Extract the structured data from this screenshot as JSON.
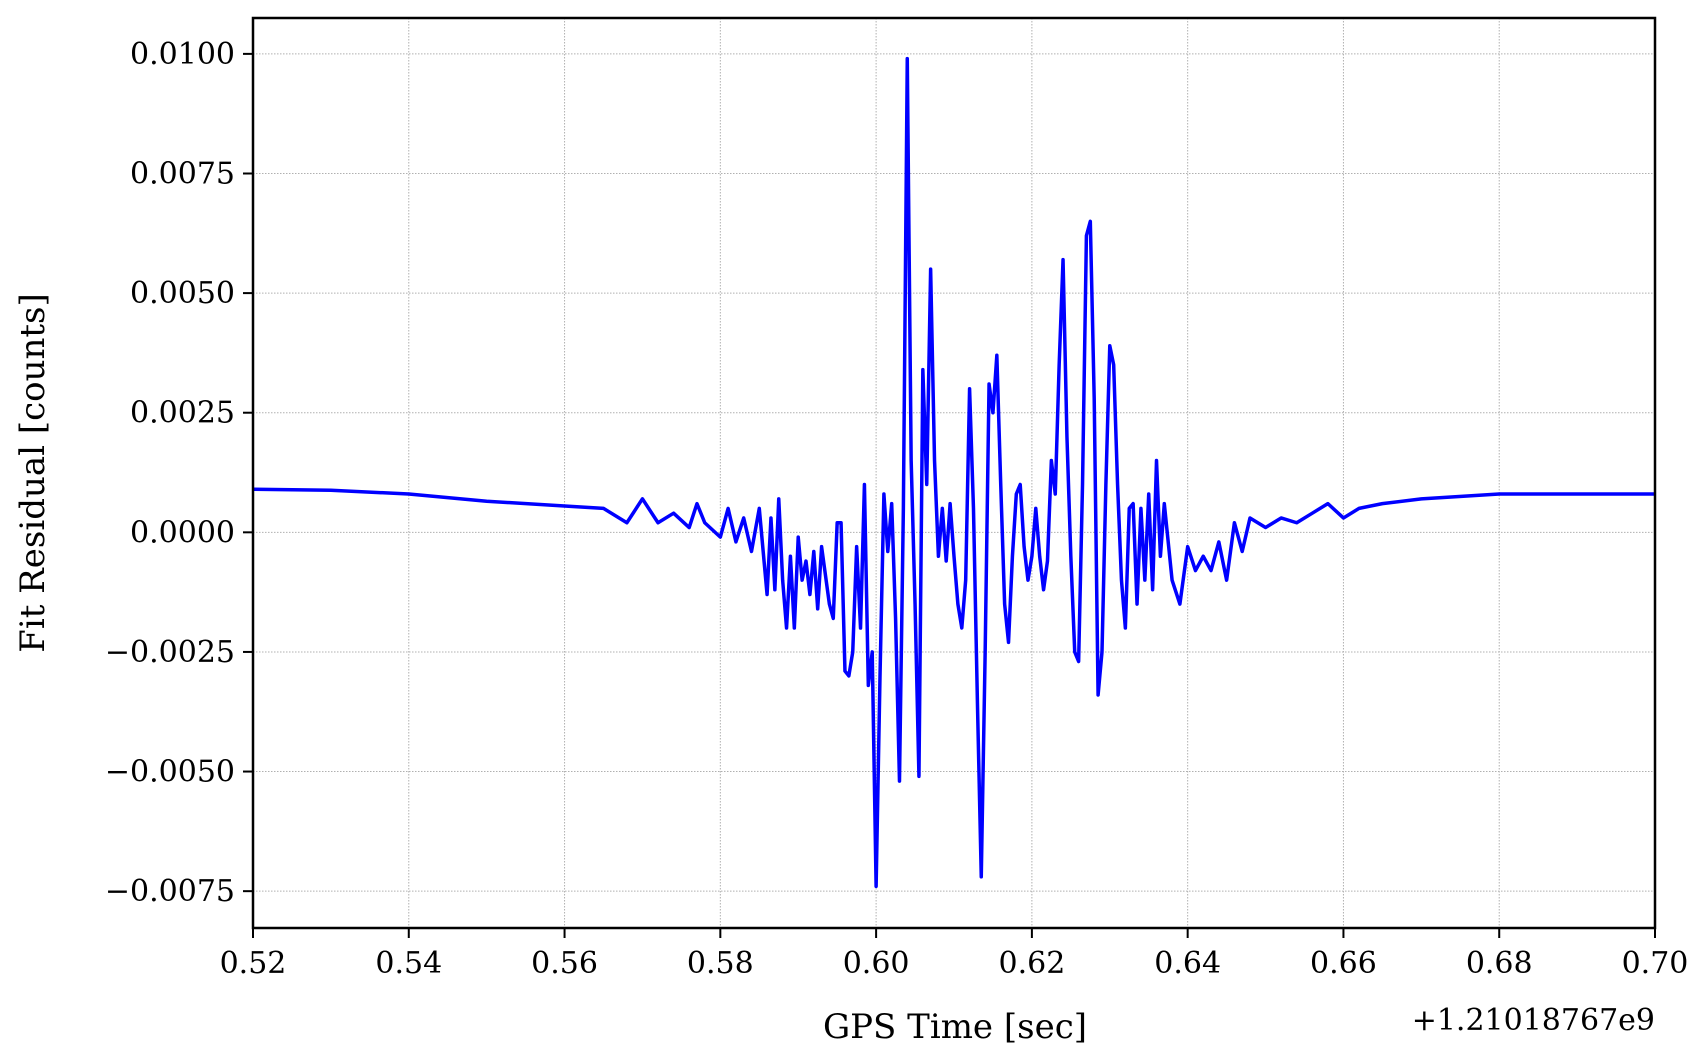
{
  "chart_data": {
    "type": "line",
    "xlabel": "GPS Time [sec]",
    "ylabel": "Fit Residual [counts]",
    "x_offset": "+1.21018767e9",
    "color": "#0000ff",
    "grid": true,
    "xlim": [
      0.52,
      0.7
    ],
    "xticks": [
      {
        "value": 0.52,
        "label": "0.52"
      },
      {
        "value": 0.54,
        "label": "0.54"
      },
      {
        "value": 0.56,
        "label": "0.56"
      },
      {
        "value": 0.58,
        "label": "0.58"
      },
      {
        "value": 0.6,
        "label": "0.60"
      },
      {
        "value": 0.62,
        "label": "0.62"
      },
      {
        "value": 0.64,
        "label": "0.64"
      },
      {
        "value": 0.66,
        "label": "0.66"
      },
      {
        "value": 0.68,
        "label": "0.68"
      },
      {
        "value": 0.7,
        "label": "0.70"
      }
    ],
    "ylim": [
      -0.00827,
      0.01075
    ],
    "yticks": [
      {
        "value": -0.0075,
        "label": "−0.0075"
      },
      {
        "value": -0.005,
        "label": "−0.0050"
      },
      {
        "value": -0.0025,
        "label": "−0.0025"
      },
      {
        "value": 0,
        "label": "0.0000"
      },
      {
        "value": 0.0025,
        "label": "0.0025"
      },
      {
        "value": 0.005,
        "label": "0.0050"
      },
      {
        "value": 0.0075,
        "label": "0.0075"
      },
      {
        "value": 0.01,
        "label": "0.0100"
      }
    ],
    "x": [
      0.52,
      0.53,
      0.54,
      0.55,
      0.56,
      0.565,
      0.568,
      0.57,
      0.572,
      0.574,
      0.576,
      0.577,
      0.578,
      0.58,
      0.581,
      0.582,
      0.583,
      0.584,
      0.585,
      0.586,
      0.5865,
      0.587,
      0.5875,
      0.588,
      0.5885,
      0.589,
      0.5895,
      0.59,
      0.5905,
      0.591,
      0.5915,
      0.592,
      0.5925,
      0.593,
      0.594,
      0.5945,
      0.595,
      0.5955,
      0.596,
      0.5965,
      0.597,
      0.5975,
      0.598,
      0.5985,
      0.599,
      0.5995,
      0.6,
      0.6005,
      0.601,
      0.6015,
      0.602,
      0.6025,
      0.603,
      0.6035,
      0.604,
      0.6045,
      0.605,
      0.6055,
      0.606,
      0.6065,
      0.607,
      0.6075,
      0.608,
      0.6085,
      0.609,
      0.6095,
      0.61,
      0.6105,
      0.611,
      0.6115,
      0.612,
      0.6125,
      0.613,
      0.6135,
      0.614,
      0.6145,
      0.615,
      0.6155,
      0.616,
      0.6165,
      0.617,
      0.6175,
      0.618,
      0.6185,
      0.619,
      0.6195,
      0.62,
      0.6205,
      0.621,
      0.6215,
      0.622,
      0.6225,
      0.623,
      0.6235,
      0.624,
      0.6245,
      0.625,
      0.6255,
      0.626,
      0.6265,
      0.627,
      0.6275,
      0.628,
      0.6285,
      0.629,
      0.6295,
      0.63,
      0.6305,
      0.631,
      0.6315,
      0.632,
      0.6325,
      0.633,
      0.6335,
      0.634,
      0.6345,
      0.635,
      0.6355,
      0.636,
      0.6365,
      0.637,
      0.638,
      0.639,
      0.64,
      0.641,
      0.642,
      0.643,
      0.644,
      0.645,
      0.646,
      0.647,
      0.648,
      0.65,
      0.652,
      0.654,
      0.656,
      0.658,
      0.66,
      0.662,
      0.665,
      0.67,
      0.68,
      0.69,
      0.7
    ],
    "values": [
      0.0009,
      0.00088,
      0.0008,
      0.00065,
      0.00055,
      0.0005,
      0.0002,
      0.0007,
      0.0002,
      0.0004,
      0.0001,
      0.0006,
      0.0002,
      -0.0001,
      0.0005,
      -0.0002,
      0.0003,
      -0.0004,
      0.0005,
      -0.0013,
      0.0003,
      -0.0012,
      0.0007,
      -0.001,
      -0.002,
      -0.0005,
      -0.002,
      -0.0001,
      -0.001,
      -0.0006,
      -0.0013,
      -0.0004,
      -0.0016,
      -0.0003,
      -0.0015,
      -0.0018,
      0.0002,
      0.0002,
      -0.0029,
      -0.003,
      -0.0025,
      -0.0003,
      -0.002,
      0.001,
      -0.0032,
      -0.0025,
      -0.0074,
      -0.003,
      0.0008,
      -0.0004,
      0.0006,
      -0.0018,
      -0.0052,
      0.0005,
      0.0099,
      0.0015,
      -0.0015,
      -0.0051,
      0.0034,
      0.001,
      0.0055,
      0.0015,
      -0.0005,
      0.0005,
      -0.0006,
      0.0006,
      -0.0005,
      -0.0015,
      -0.002,
      -0.001,
      0.003,
      0.0005,
      -0.0035,
      -0.0072,
      -0.0025,
      0.0031,
      0.0025,
      0.0037,
      0.001,
      -0.0015,
      -0.0023,
      -0.0005,
      0.0008,
      0.001,
      -0.0003,
      -0.001,
      -0.0005,
      0.0005,
      -0.0005,
      -0.0012,
      -0.0006,
      0.0015,
      0.0008,
      0.0035,
      0.0057,
      0.002,
      -0.0005,
      -0.0025,
      -0.0027,
      0.001,
      0.0062,
      0.0065,
      0.0028,
      -0.0034,
      -0.0025,
      0.001,
      0.0039,
      0.0035,
      0.001,
      -0.001,
      -0.002,
      0.0005,
      0.0006,
      -0.0015,
      0.0005,
      -0.001,
      0.0008,
      -0.0012,
      0.0015,
      -0.0005,
      0.0006,
      -0.001,
      -0.0015,
      -0.0003,
      -0.0008,
      -0.0005,
      -0.0008,
      -0.0002,
      -0.001,
      0.0002,
      -0.0004,
      0.0003,
      0.0001,
      0.0003,
      0.0002,
      0.0004,
      0.0006,
      0.0003,
      0.0005,
      0.0006,
      0.0007,
      0.0008,
      0.0008,
      0.0008
    ]
  }
}
